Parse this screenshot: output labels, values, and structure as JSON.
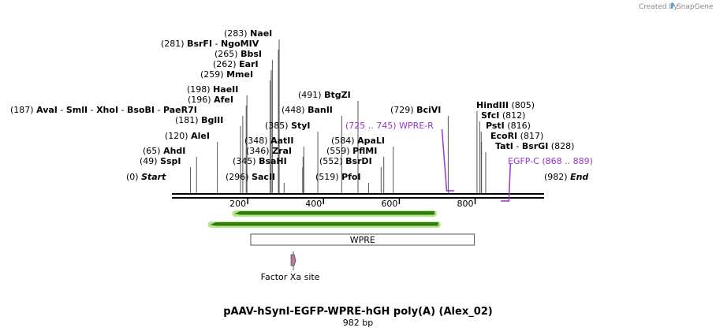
{
  "credit": {
    "prefix": "Created by",
    "brand": "SnapGene"
  },
  "map": {
    "title": "pAAV-hSynI-EGFP-WPRE-hGH poly(A) (Alex_02)",
    "length_label": "982 bp",
    "length": 982,
    "ticks": [
      200,
      400,
      600,
      800
    ]
  },
  "sites": [
    {
      "pos": "(0)",
      "names": [
        {
          "t": "Start",
          "italic": true
        }
      ],
      "bp": 0
    },
    {
      "pos": "(49)",
      "names": [
        {
          "t": "SspI"
        }
      ],
      "bp": 49
    },
    {
      "pos": "(65)",
      "names": [
        {
          "t": "AhdI"
        }
      ],
      "bp": 65
    },
    {
      "pos": "(120)",
      "names": [
        {
          "t": "AleI"
        }
      ],
      "bp": 120
    },
    {
      "pos": "(181)",
      "names": [
        {
          "t": "BglII"
        }
      ],
      "bp": 181
    },
    {
      "pos": "(187)",
      "names": [
        {
          "t": "AvaI"
        },
        {
          "t": "SmlI"
        },
        {
          "t": "XhoI"
        },
        {
          "t": "BsoBI"
        },
        {
          "t": "PaeR7I"
        }
      ],
      "bp": 187
    },
    {
      "pos": "(196)",
      "names": [
        {
          "t": "AfeI"
        }
      ],
      "bp": 196
    },
    {
      "pos": "(198)",
      "names": [
        {
          "t": "HaeII"
        }
      ],
      "bp": 198
    },
    {
      "pos": "(259)",
      "names": [
        {
          "t": "MmeI"
        }
      ],
      "bp": 259
    },
    {
      "pos": "(262)",
      "names": [
        {
          "t": "EarI"
        }
      ],
      "bp": 262
    },
    {
      "pos": "(265)",
      "names": [
        {
          "t": "BbsI"
        }
      ],
      "bp": 265
    },
    {
      "pos": "(281)",
      "names": [
        {
          "t": "BsrFI"
        },
        {
          "t": "NgoMIV"
        }
      ],
      "bp": 281
    },
    {
      "pos": "(283)",
      "names": [
        {
          "t": "NaeI"
        }
      ],
      "bp": 283
    },
    {
      "pos": "(296)",
      "names": [
        {
          "t": "SacII"
        }
      ],
      "bp": 296
    },
    {
      "pos": "(345)",
      "names": [
        {
          "t": "BsaHI"
        }
      ],
      "bp": 345
    },
    {
      "pos": "(346)",
      "names": [
        {
          "t": "ZraI"
        }
      ],
      "bp": 346
    },
    {
      "pos": "(348)",
      "names": [
        {
          "t": "AatII"
        }
      ],
      "bp": 348
    },
    {
      "pos": "(385)",
      "names": [
        {
          "t": "StyI"
        }
      ],
      "bp": 385
    },
    {
      "pos": "(448)",
      "names": [
        {
          "t": "BanII"
        }
      ],
      "bp": 448
    },
    {
      "pos": "(491)",
      "names": [
        {
          "t": "BtgZI"
        }
      ],
      "bp": 491
    },
    {
      "pos": "(519)",
      "names": [
        {
          "t": "PfoI"
        }
      ],
      "bp": 519
    },
    {
      "pos": "(552)",
      "names": [
        {
          "t": "BsrDI"
        }
      ],
      "bp": 552
    },
    {
      "pos": "(559)",
      "names": [
        {
          "t": "PflMI"
        }
      ],
      "bp": 559
    },
    {
      "pos": "(584)",
      "names": [
        {
          "t": "ApaLI"
        }
      ],
      "bp": 584
    },
    {
      "pos": "(729)",
      "names": [
        {
          "t": "BciVI"
        }
      ],
      "bp": 729
    },
    {
      "pos": "(805)",
      "names": [
        {
          "t": "HindIII"
        }
      ],
      "bp": 805
    },
    {
      "pos": "(812)",
      "names": [
        {
          "t": "SfcI"
        }
      ],
      "bp": 812
    },
    {
      "pos": "(816)",
      "names": [
        {
          "t": "PstI"
        }
      ],
      "bp": 816
    },
    {
      "pos": "(817)",
      "names": [
        {
          "t": "EcoRI"
        }
      ],
      "bp": 817
    },
    {
      "pos": "(828)",
      "names": [
        {
          "t": "TatI"
        },
        {
          "t": "BsrGI"
        }
      ],
      "bp": 828
    },
    {
      "pos": "(982)",
      "names": [
        {
          "t": "End",
          "italic": true
        }
      ],
      "bp": 982
    }
  ],
  "primers": [
    {
      "name": "WPRE-R",
      "range": "(725 .. 745)",
      "start": 725,
      "end": 745,
      "dir": "reverse"
    },
    {
      "name": "EGFP-C",
      "range": "(868 .. 889)",
      "start": 868,
      "end": 889,
      "dir": "forward"
    }
  ],
  "features": [
    {
      "name": "WPRE",
      "start": 208,
      "end": 798,
      "type": "box"
    },
    {
      "name": "Factor Xa site",
      "start": 315,
      "end": 326,
      "type": "site"
    }
  ],
  "arrows": [
    {
      "start": 165,
      "end": 693,
      "dir": "reverse"
    },
    {
      "start": 101,
      "end": 703,
      "dir": "reverse"
    }
  ],
  "colors": {
    "primer": "#9933cc",
    "arrow_fill": "#2e7d0a",
    "arrow_glow": "#b8e68a",
    "feature_site": "#b07aa1"
  }
}
